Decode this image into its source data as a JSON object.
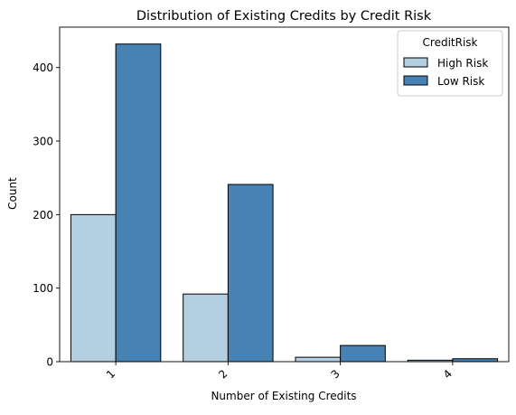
{
  "chart_data": {
    "type": "bar",
    "title": "Distribution of Existing Credits by Credit Risk",
    "xlabel": "Number of Existing Credits",
    "ylabel": "Count",
    "categories": [
      "1",
      "2",
      "3",
      "4"
    ],
    "ylim": [
      0,
      455
    ],
    "yticks": [
      0,
      100,
      200,
      300,
      400
    ],
    "series": [
      {
        "name": "High Risk",
        "color": "#b3cfe1",
        "values": [
          200,
          92,
          6,
          2
        ]
      },
      {
        "name": "Low Risk",
        "color": "#4682b4",
        "values": [
          432,
          241,
          22,
          4
        ]
      }
    ],
    "legend": {
      "title": "CreditRisk",
      "position": "top-right"
    },
    "grid": false
  }
}
